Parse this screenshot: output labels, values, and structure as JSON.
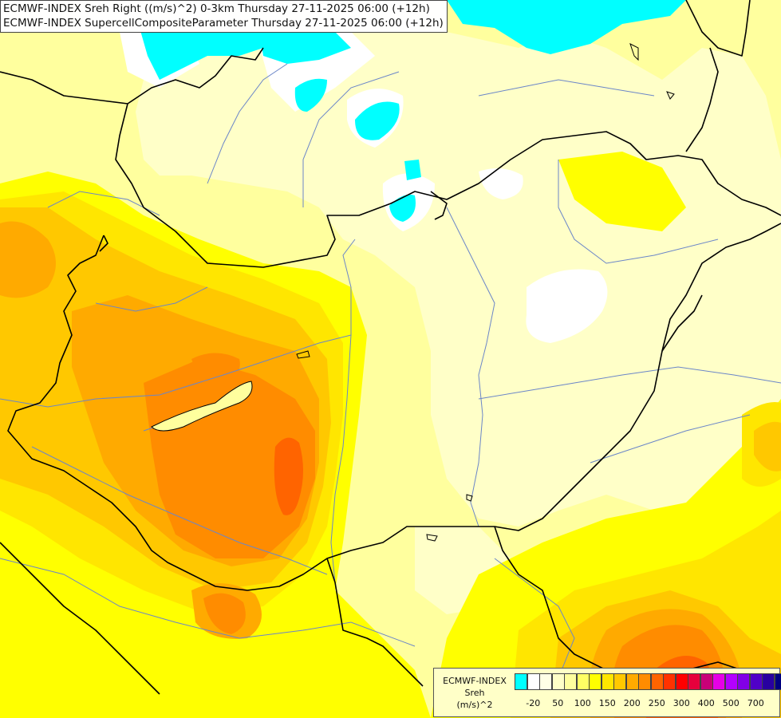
{
  "title": {
    "line1": "ECMWF-INDEX Sreh Right ((m/s)^2) 0-3km Thursday 27-11-2025 06:00 (+12h)",
    "line2": "ECMWF-INDEX SupercellCompositeParameter Thursday 27-11-2025 06:00 (+12h)"
  },
  "legend": {
    "model": "ECMWF-INDEX",
    "variable": "Sreh",
    "unit": "(m/s)^2",
    "colors": [
      "#00ffff",
      "#ffffff",
      "#ffffe6",
      "#ffffc8",
      "#ffff9e",
      "#ffff64",
      "#ffff00",
      "#ffe600",
      "#ffc800",
      "#ffaa00",
      "#ff8c00",
      "#ff6400",
      "#ff3200",
      "#ff0000",
      "#e6003c",
      "#c80078",
      "#e600e6",
      "#b400ff",
      "#8200e6",
      "#5000c8",
      "#2800a0",
      "#000080"
    ],
    "ticks": [
      "-20",
      "50",
      "100",
      "150",
      "200",
      "250",
      "300",
      "400",
      "500",
      "700"
    ]
  },
  "colors": {
    "cyan": "#00ffff",
    "white": "#ffffff",
    "very_light_yellow": "#ffffc8",
    "light_yellow": "#ffff9e",
    "yellow": "#ffff00",
    "gold": "#ffe600",
    "orange_yellow": "#ffc800",
    "orange": "#ffaa00",
    "dark_orange": "#ff8c00",
    "red_orange": "#ff6400",
    "border_line": "#000000",
    "river_line": "#6b86c8"
  }
}
